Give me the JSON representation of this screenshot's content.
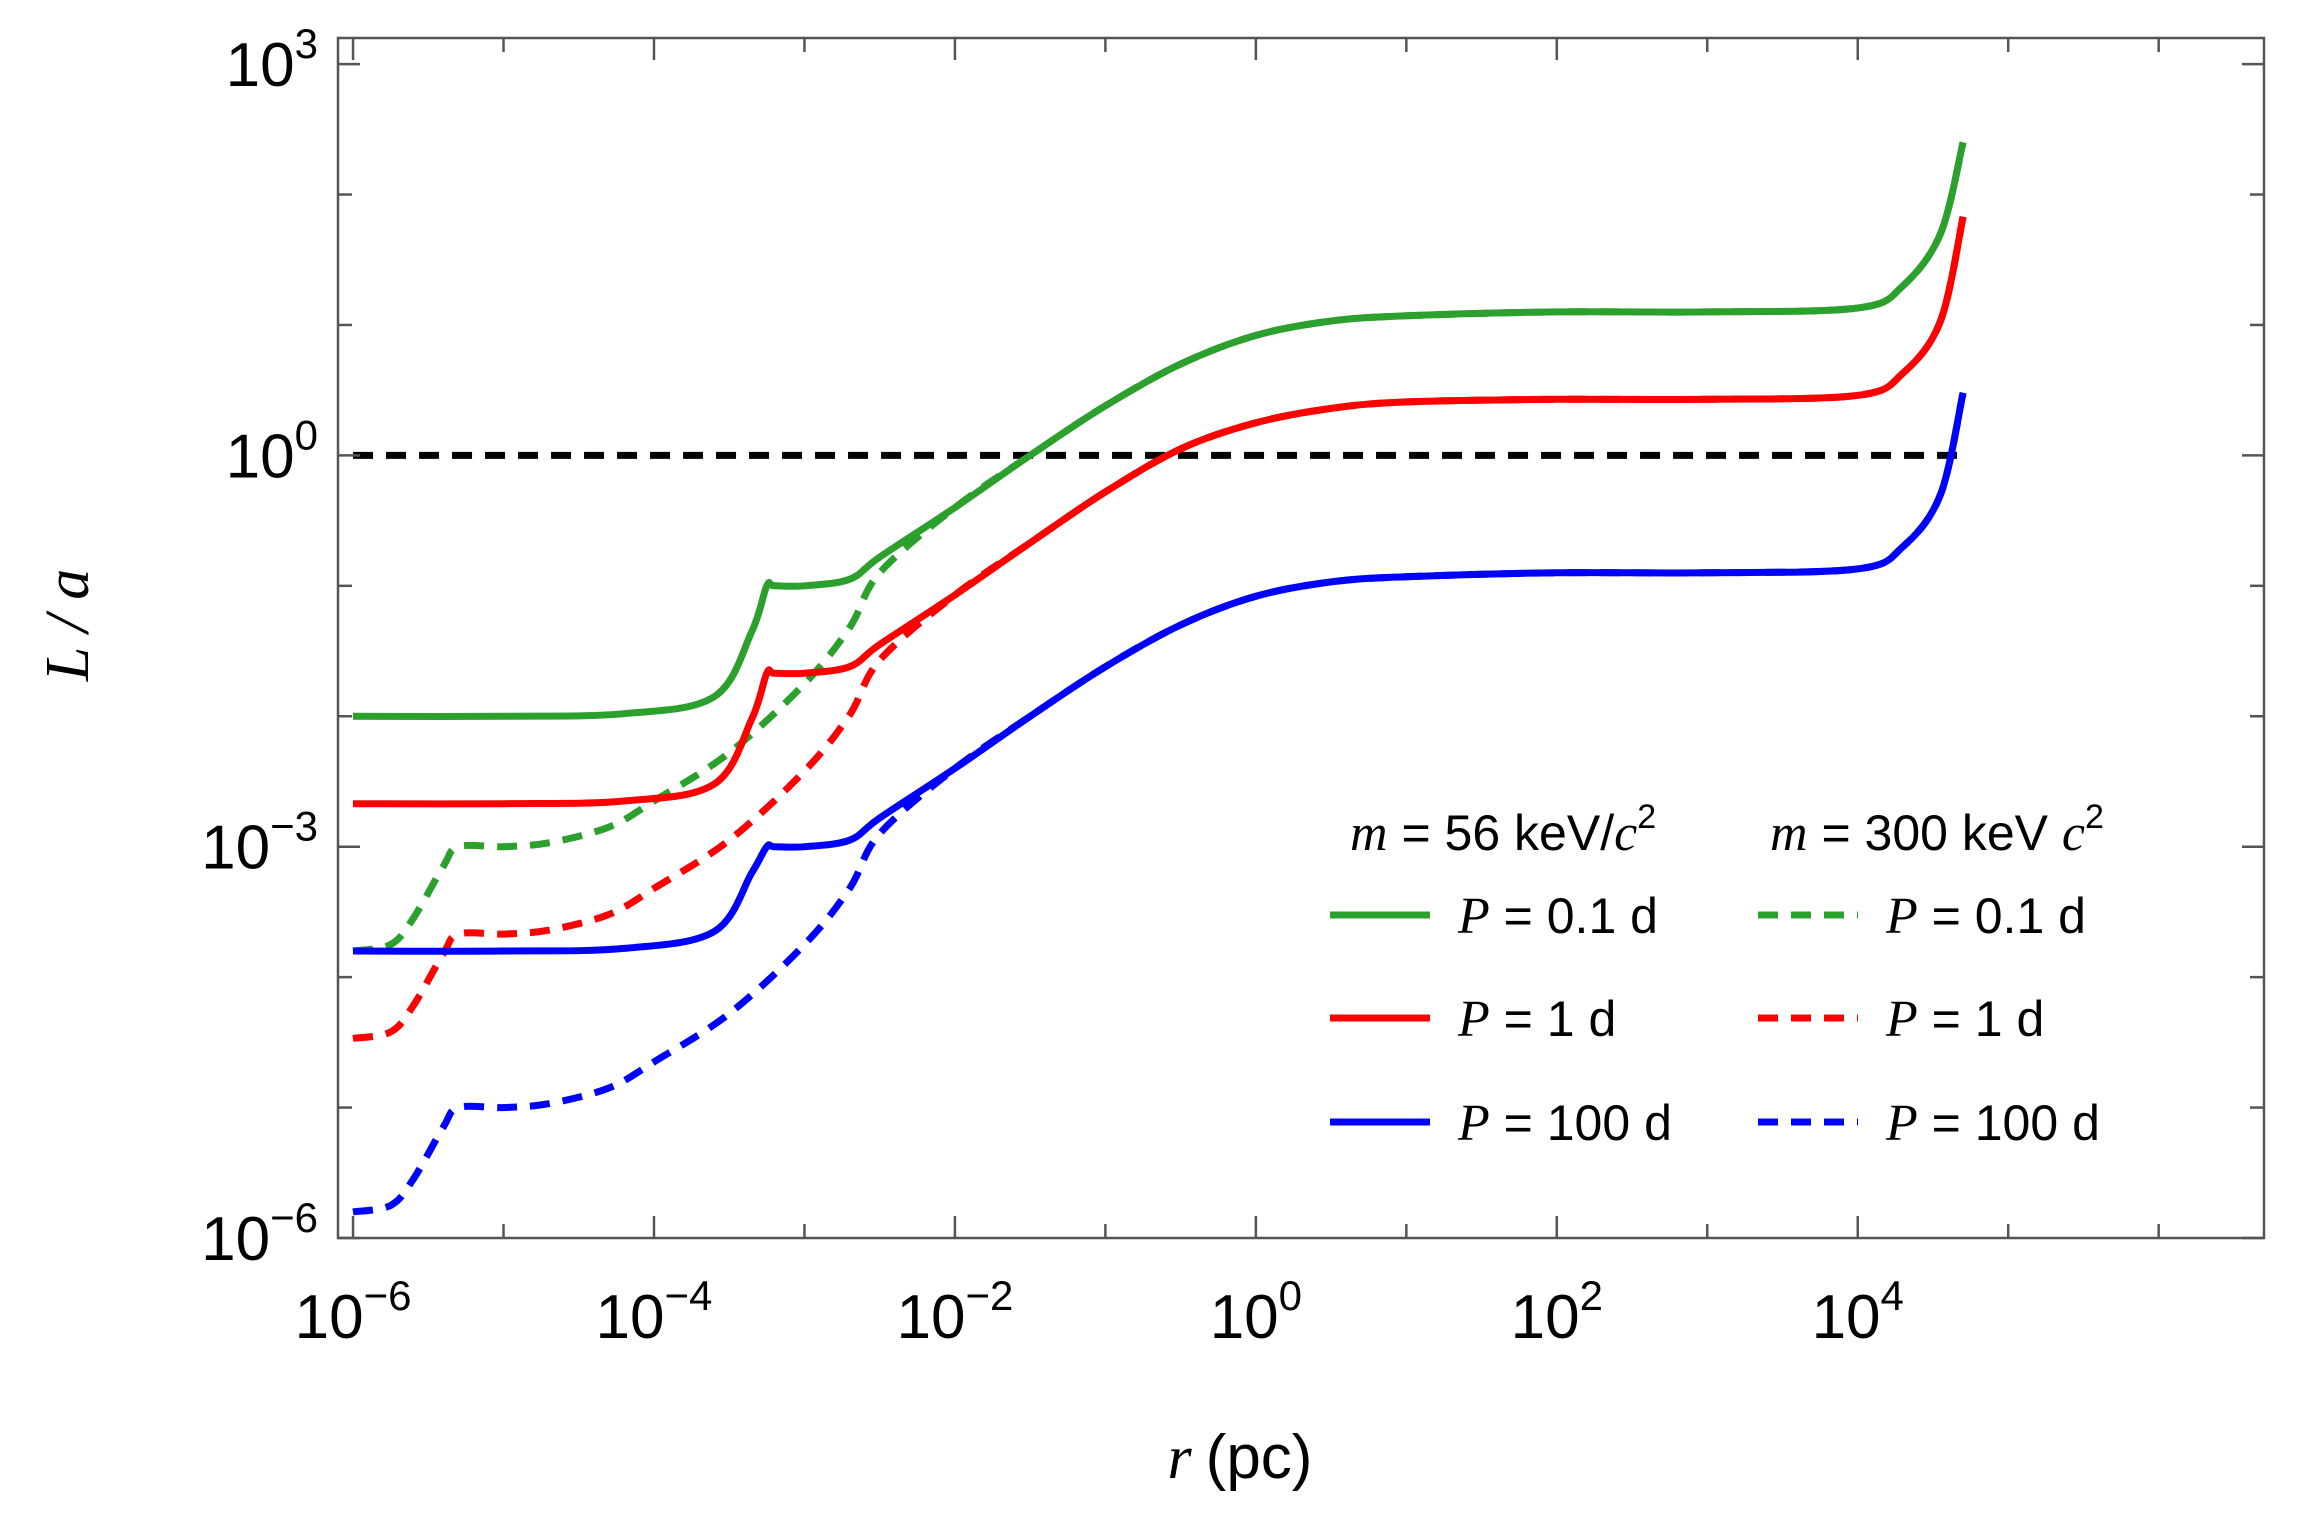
{
  "chart_data": {
    "type": "line",
    "title": "",
    "xlabel": {
      "symbol": "r",
      "unit": "(pc)"
    },
    "ylabel": {
      "symbol": "L",
      "separator": " / ",
      "denominator": "a"
    },
    "x_scale": "log",
    "y_scale": "log",
    "xlim_log10": [
      -6.1,
      6.7
    ],
    "ylim_log10": [
      -6,
      3.2
    ],
    "x_ticks": [
      {
        "base": "10",
        "exp": "−6",
        "log10": -6
      },
      {
        "base": "10",
        "exp": "−4",
        "log10": -4
      },
      {
        "base": "10",
        "exp": "−2",
        "log10": -2
      },
      {
        "base": "10",
        "exp": "0",
        "log10": 0
      },
      {
        "base": "10",
        "exp": "2",
        "log10": 2
      },
      {
        "base": "10",
        "exp": "4",
        "log10": 4
      }
    ],
    "y_ticks": [
      {
        "base": "10",
        "exp": "−6",
        "log10": -6
      },
      {
        "base": "10",
        "exp": "−3",
        "log10": -3
      },
      {
        "base": "10",
        "exp": "0",
        "log10": 0
      },
      {
        "base": "10",
        "exp": "3",
        "log10": 3
      }
    ],
    "reference_line": {
      "y_log10": 0,
      "color": "#000000",
      "style": "dashed"
    },
    "legend": {
      "placement": "lower-right",
      "column_headers": [
        {
          "symbol": "m",
          "text": " = 56 keV/",
          "c": "c",
          "sup": "2"
        },
        {
          "symbol": "m",
          "text": " = 300 keV ",
          "c": "c",
          "sup": "2"
        }
      ]
    },
    "series": [
      {
        "name": "m = 56 keV/c², P = 0.1 d",
        "legend_label": " = 0.1 d",
        "symbol": "P",
        "color": "#2ca02c",
        "style": "solid",
        "x_log10": [
          -6,
          -5,
          -4.2,
          -3.6,
          -3.35,
          -3.25,
          -3.2,
          -3,
          -2.7,
          -2.5,
          -2,
          -1.5,
          -1,
          -0.5,
          0,
          0.5,
          1,
          2,
          3,
          4,
          4.3,
          4.55,
          4.7
        ],
        "y_log10": [
          -2.0,
          -2.0,
          -1.98,
          -1.85,
          -1.35,
          -1.0,
          -1.0,
          -1.0,
          -0.95,
          -0.78,
          -0.4,
          0,
          0.38,
          0.7,
          0.92,
          1.03,
          1.07,
          1.1,
          1.1,
          1.13,
          1.3,
          1.7,
          2.4
        ]
      },
      {
        "name": "m = 300 keV c², P = 0.1 d",
        "legend_label": " = 0.1 d",
        "symbol": "P",
        "color": "#2ca02c",
        "style": "dashed",
        "x_log10": [
          -6,
          -5.75,
          -5.6,
          -5.4,
          -5.3,
          -5,
          -4.7,
          -4.3,
          -4,
          -3.5,
          -3,
          -2.7,
          -2.5,
          -2,
          -1.5,
          -1,
          -0.5,
          0,
          0.5,
          1,
          2,
          3,
          4,
          4.3,
          4.55,
          4.7
        ],
        "y_log10": [
          -3.8,
          -3.75,
          -3.55,
          -3.15,
          -3.0,
          -3.0,
          -2.97,
          -2.85,
          -2.65,
          -2.28,
          -1.75,
          -1.32,
          -0.9,
          -0.4,
          0,
          0.38,
          0.7,
          0.92,
          1.03,
          1.07,
          1.1,
          1.1,
          1.13,
          1.3,
          1.7,
          2.4
        ]
      },
      {
        "name": "m = 56 keV/c², P = 1 d",
        "legend_label": " = 1 d",
        "symbol": "P",
        "color": "#ff0000",
        "style": "solid",
        "x_log10": [
          -6,
          -5,
          -4.2,
          -3.6,
          -3.35,
          -3.25,
          -3.2,
          -3,
          -2.7,
          -2.5,
          -2,
          -1.5,
          -1,
          -0.5,
          0,
          0.5,
          1,
          2,
          3,
          4,
          4.3,
          4.55,
          4.7
        ],
        "y_log10": [
          -2.67,
          -2.67,
          -2.65,
          -2.52,
          -2.02,
          -1.67,
          -1.67,
          -1.67,
          -1.62,
          -1.45,
          -1.07,
          -0.67,
          -0.28,
          0.05,
          0.25,
          0.36,
          0.41,
          0.43,
          0.43,
          0.46,
          0.63,
          1.03,
          1.83
        ]
      },
      {
        "name": "m = 300 keV c², P = 1 d",
        "legend_label": " = 1 d",
        "symbol": "P",
        "color": "#ff0000",
        "style": "dashed",
        "x_log10": [
          -6,
          -5.75,
          -5.6,
          -5.4,
          -5.3,
          -5,
          -4.7,
          -4.3,
          -4,
          -3.5,
          -3,
          -2.7,
          -2.5,
          -2,
          -1.5,
          -1,
          -0.5,
          0,
          0.5,
          1,
          2,
          3,
          4,
          4.3,
          4.55,
          4.7
        ],
        "y_log10": [
          -4.47,
          -4.42,
          -4.22,
          -3.82,
          -3.67,
          -3.67,
          -3.64,
          -3.52,
          -3.32,
          -2.95,
          -2.42,
          -1.99,
          -1.57,
          -1.07,
          -0.67,
          -0.28,
          0.05,
          0.25,
          0.36,
          0.41,
          0.43,
          0.43,
          0.46,
          0.63,
          1.03,
          1.83
        ]
      },
      {
        "name": "m = 56 keV/c², P = 100 d",
        "legend_label": " = 100 d",
        "symbol": "P",
        "color": "#0000ff",
        "style": "solid",
        "x_log10": [
          -6,
          -5,
          -4.2,
          -3.6,
          -3.35,
          -3.25,
          -3.2,
          -3,
          -2.7,
          -2.5,
          -2,
          -1.5,
          -1,
          -0.5,
          0,
          0.5,
          1,
          2,
          3,
          4,
          4.3,
          4.55,
          4.7
        ],
        "y_log10": [
          -3.8,
          -3.8,
          -3.78,
          -3.65,
          -3.2,
          -3.0,
          -3.0,
          -3.0,
          -2.95,
          -2.78,
          -2.4,
          -2.0,
          -1.62,
          -1.3,
          -1.08,
          -0.97,
          -0.93,
          -0.9,
          -0.9,
          -0.87,
          -0.7,
          -0.3,
          0.48
        ]
      },
      {
        "name": "m = 300 keV c², P = 100 d",
        "legend_label": " = 100 d",
        "symbol": "P",
        "color": "#0000ff",
        "style": "dashed",
        "x_log10": [
          -6,
          -5.75,
          -5.6,
          -5.4,
          -5.3,
          -5,
          -4.7,
          -4.3,
          -4,
          -3.5,
          -3,
          -2.7,
          -2.5,
          -2,
          -1.5,
          -1,
          -0.5,
          0,
          0.5,
          1,
          2,
          3,
          4,
          4.3,
          4.55,
          4.7
        ],
        "y_log10": [
          -5.8,
          -5.75,
          -5.55,
          -5.15,
          -5.0,
          -5.0,
          -4.97,
          -4.85,
          -4.65,
          -4.28,
          -3.75,
          -3.32,
          -2.9,
          -2.4,
          -2.0,
          -1.62,
          -1.3,
          -1.08,
          -0.97,
          -0.93,
          -0.9,
          -0.9,
          -0.87,
          -0.7,
          -0.3,
          0.48
        ]
      }
    ]
  }
}
